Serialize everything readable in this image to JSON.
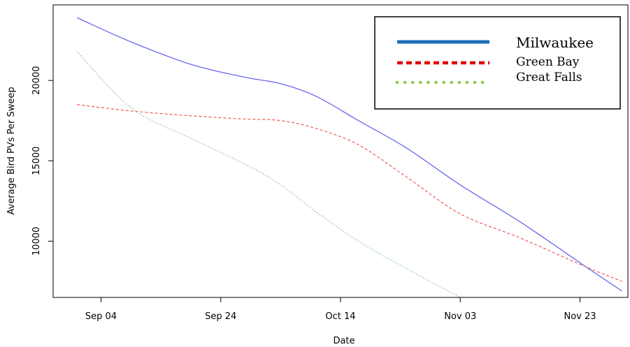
{
  "chart_data": {
    "type": "line",
    "title": "",
    "xlabel": "Date",
    "ylabel": "Average Bird PVs Per Sweep",
    "x_ticks": [
      "Sep 04",
      "Sep 24",
      "Oct 14",
      "Nov 03",
      "Nov 23"
    ],
    "y_ticks": [
      10000,
      15000,
      20000
    ],
    "xlim": [
      "2015-08-27",
      "2015-12-01"
    ],
    "ylim": [
      6500,
      24700
    ],
    "x": [
      "2015-08-31",
      "2015-09-09",
      "2015-09-19",
      "2015-09-28",
      "2015-10-04",
      "2015-10-10",
      "2015-10-17",
      "2015-10-25",
      "2015-11-03",
      "2015-11-13",
      "2015-11-24",
      "2015-11-30"
    ],
    "series": [
      {
        "name": "Milwaukee",
        "color": "#5b5bf0",
        "style": "solid",
        "values": [
          23900,
          22400,
          21000,
          20200,
          19800,
          19000,
          17500,
          15800,
          13500,
          11200,
          8400,
          6900
        ]
      },
      {
        "name": "Green Bay",
        "color": "#f25757",
        "style": "dashed",
        "values": [
          18500,
          18100,
          17800,
          17600,
          17500,
          17000,
          16000,
          14000,
          11700,
          10200,
          8400,
          7500
        ]
      },
      {
        "name": "Great Falls",
        "color": "#5fb25f",
        "style": "dotted",
        "values": [
          21800,
          18300,
          16400,
          14800,
          13500,
          11800,
          10000,
          8300,
          6500,
          null,
          null,
          null
        ]
      }
    ],
    "legend": {
      "position": "top-right",
      "entries": [
        {
          "label": "Milwaukee",
          "color": "#1f6fb8",
          "style": "solid"
        },
        {
          "label": "Green Bay",
          "color": "#e00000",
          "style": "dashed"
        },
        {
          "label": "Great Falls",
          "color": "#8fc84a",
          "style": "dotted"
        }
      ]
    },
    "grid": false
  }
}
